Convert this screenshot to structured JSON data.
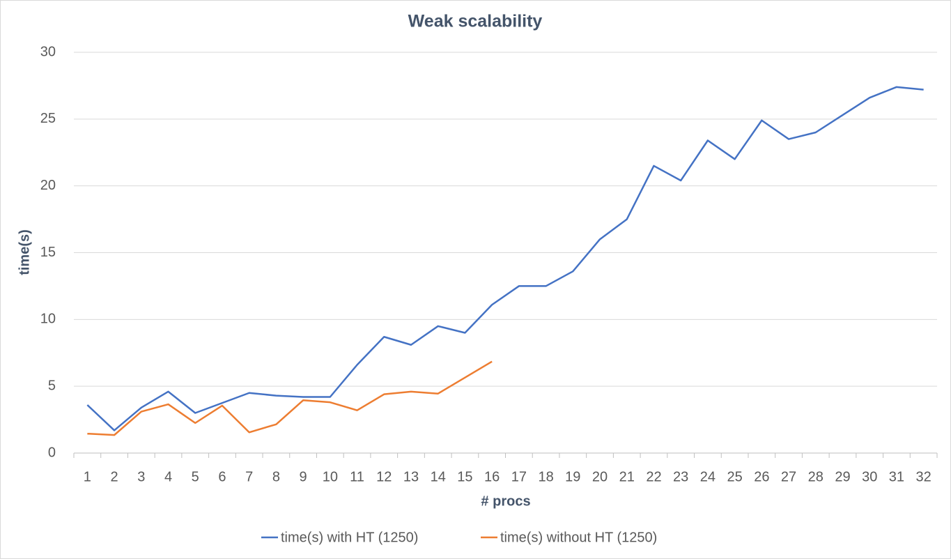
{
  "chart_data": {
    "type": "line",
    "title": "Weak scalability",
    "x_label": "# procs",
    "y_label": "time(s)",
    "categories": [
      "1",
      "2",
      "3",
      "4",
      "5",
      "6",
      "7",
      "8",
      "9",
      "10",
      "11",
      "12",
      "13",
      "14",
      "15",
      "16",
      "17",
      "18",
      "19",
      "20",
      "21",
      "22",
      "23",
      "24",
      "25",
      "26",
      "27",
      "28",
      "29",
      "30",
      "31",
      "32"
    ],
    "series": [
      {
        "name": "time(s) with HT (1250)",
        "color": "#4472c4",
        "values": [
          3.6,
          1.7,
          3.4,
          4.6,
          3.0,
          3.75,
          4.5,
          4.3,
          4.2,
          4.2,
          6.6,
          8.7,
          8.1,
          9.5,
          9.0,
          11.1,
          12.5,
          12.5,
          13.6,
          16.0,
          17.5,
          21.5,
          20.4,
          23.4,
          22.0,
          24.9,
          23.5,
          24.0,
          25.3,
          26.6,
          27.4,
          27.2
        ]
      },
      {
        "name": "time(s) without HT (1250)",
        "color": "#ed7d31",
        "values": [
          1.45,
          1.35,
          3.1,
          3.65,
          2.25,
          3.55,
          1.55,
          2.15,
          3.95,
          3.8,
          3.2,
          4.4,
          4.6,
          4.45,
          5.65,
          6.85,
          null,
          null,
          null,
          null,
          null,
          null,
          null,
          null,
          null,
          null,
          null,
          null,
          null,
          null,
          null,
          null
        ]
      }
    ],
    "ylim": [
      0,
      30
    ],
    "yticks": [
      0,
      5,
      10,
      15,
      20,
      25,
      30
    ],
    "grid": true,
    "legend": "bottom"
  }
}
